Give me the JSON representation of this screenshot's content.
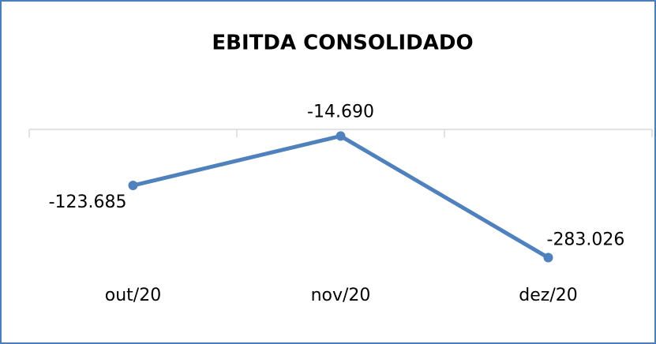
{
  "chart_data": {
    "type": "line",
    "title": "EBITDA CONSOLIDADO",
    "categories": [
      "out/20",
      "nov/20",
      "dez/20"
    ],
    "series": [
      {
        "name": "EBITDA",
        "color": "#4f81bd",
        "values": [
          -123685,
          -14690,
          -283026
        ],
        "value_labels": [
          "-123.685",
          "-14.690",
          "-283.026"
        ]
      }
    ],
    "ylim": [
      -350000,
      0
    ]
  }
}
